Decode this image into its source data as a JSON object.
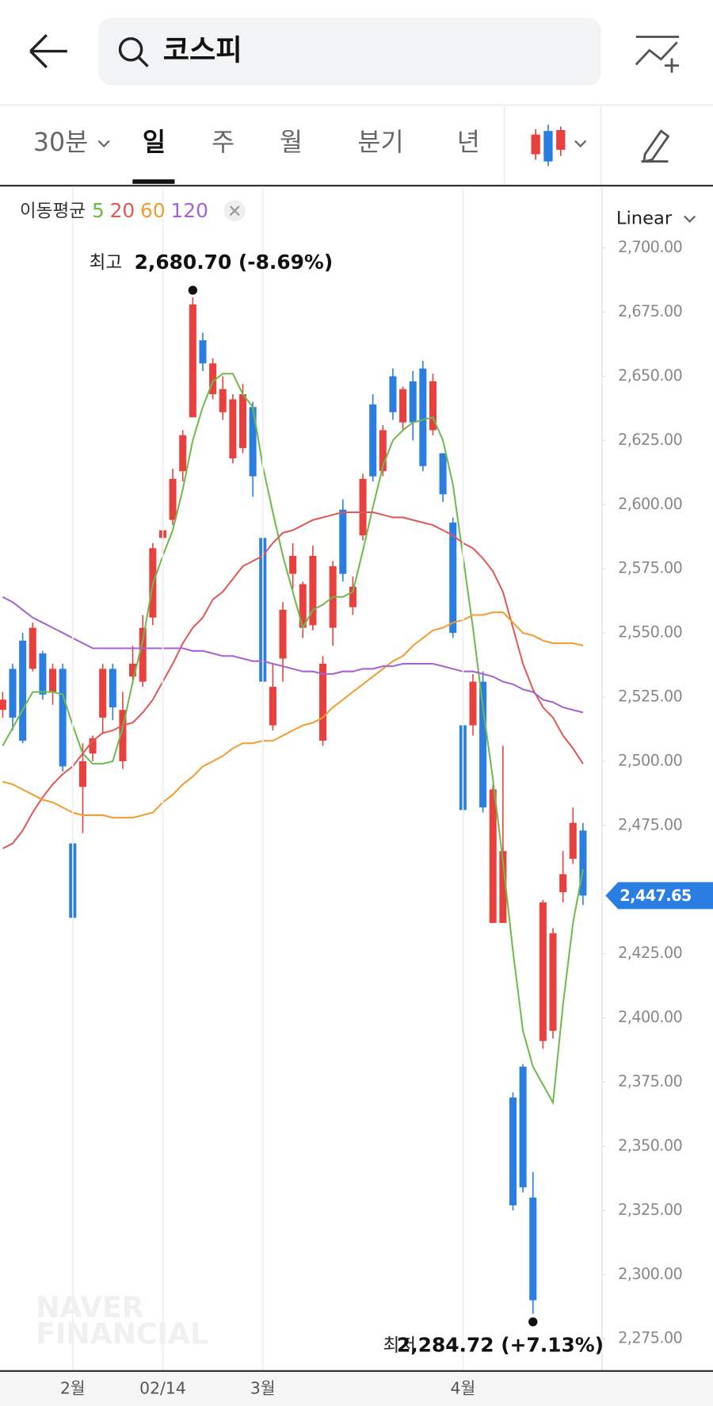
{
  "header": {
    "search_query": "코스피"
  },
  "tabs": [
    "30분",
    "일",
    "주",
    "월",
    "분기",
    "년"
  ],
  "watermark": [
    "NAVER",
    "FINANCIAL"
  ],
  "chart_data": {
    "type": "candlestick",
    "legend_title": "이동평균",
    "scale": "Linear",
    "categories": [
      null,
      null,
      null,
      null,
      null,
      null,
      null,
      "2월",
      null,
      null,
      null,
      null,
      null,
      null,
      null,
      null,
      "02/14",
      null,
      null,
      null,
      null,
      null,
      null,
      null,
      null,
      null,
      "3월",
      null,
      null,
      null,
      null,
      null,
      null,
      null,
      null,
      null,
      null,
      null,
      null,
      null,
      null,
      null,
      null,
      null,
      null,
      null,
      "4월",
      null,
      null,
      null,
      null,
      null,
      null,
      null,
      null,
      null,
      null,
      null,
      null
    ],
    "open": [
      2520,
      2536,
      2547,
      2536,
      2542,
      2527,
      2536,
      2468,
      2490,
      2503,
      2517,
      2536,
      2500,
      2533,
      2531,
      2556,
      2587,
      2594,
      2613,
      2634,
      2664,
      2643,
      2636,
      2618,
      2622,
      2638,
      2587,
      2514,
      2540,
      2573,
      2552,
      2553,
      2508,
      2552,
      2598,
      2560,
      2588,
      2639,
      2613,
      2650,
      2632,
      2648,
      2653,
      2629,
      2620,
      2593,
      2514,
      2514,
      2531,
      2437,
      2437,
      2369,
      2381,
      2330,
      2391,
      2395,
      2449,
      2462,
      2473
    ],
    "high": [
      2527,
      2538,
      2550,
      2554,
      2543,
      2538,
      2538,
      2470,
      2507,
      2510,
      2538,
      2538,
      2527,
      2545,
      2557,
      2585,
      2596,
      2614,
      2629,
      2680.7,
      2667,
      2657,
      2650,
      2643,
      2647,
      2640,
      2589,
      2538,
      2562,
      2585,
      2570,
      2584,
      2541,
      2578,
      2602,
      2572,
      2612,
      2643,
      2631,
      2653,
      2646,
      2652,
      2656,
      2651,
      2620,
      2595,
      2518,
      2534,
      2535,
      2491,
      2506,
      2371,
      2382,
      2340,
      2446,
      2435,
      2465,
      2482,
      2476
    ],
    "low": [
      2517,
      2512,
      2507,
      2535,
      2524,
      2522,
      2496,
      2438,
      2472,
      2500,
      2511,
      2516,
      2497,
      2530,
      2529,
      2553,
      2580,
      2592,
      2609,
      2634,
      2652,
      2641,
      2633,
      2616,
      2620,
      2603,
      2528,
      2512,
      2531,
      2567,
      2548,
      2551,
      2506,
      2545,
      2570,
      2557,
      2586,
      2609,
      2611,
      2633,
      2629,
      2625,
      2613,
      2627,
      2601,
      2548,
      2478,
      2510,
      2480,
      2437,
      2437,
      2325,
      2332,
      2284.72,
      2388,
      2392,
      2445,
      2460,
      2444
    ],
    "close": [
      2524,
      2517,
      2508,
      2552,
      2526,
      2536,
      2498,
      2439,
      2500,
      2509,
      2536,
      2521,
      2520,
      2538,
      2552,
      2583,
      2590,
      2610,
      2627,
      2678,
      2655,
      2655,
      2645,
      2641,
      2643,
      2611,
      2531,
      2529,
      2559,
      2580,
      2569,
      2580,
      2538,
      2576,
      2573,
      2568,
      2610,
      2611,
      2629,
      2636,
      2645,
      2632,
      2615,
      2648,
      2604,
      2550,
      2481,
      2531,
      2482,
      2489,
      2465,
      2327,
      2334,
      2290,
      2445,
      2433,
      2456,
      2476,
      2447.65
    ],
    "up_color": "#e8413d",
    "down_color": "#2a7de1",
    "series": [
      {
        "name": "5",
        "color": "#6dbb4c",
        "values": [
          2506,
          2513,
          2520,
          2527,
          2527,
          2527,
          2526,
          2514,
          2503,
          2499,
          2499,
          2500,
          2513,
          2531,
          2547,
          2569,
          2580,
          2590,
          2606,
          2625,
          2638,
          2648,
          2651,
          2651,
          2643,
          2638,
          2615,
          2597,
          2580,
          2566,
          2552,
          2559,
          2561,
          2564,
          2564,
          2566,
          2582,
          2599,
          2615,
          2625,
          2629,
          2632,
          2633,
          2634,
          2625,
          2608,
          2580,
          2552,
          2521,
          2493,
          2461,
          2426,
          2395,
          2381,
          2374,
          2367,
          2405,
          2437,
          2458
        ]
      },
      {
        "name": "20",
        "color": "#e05a55",
        "values": [
          2466,
          2468,
          2473,
          2480,
          2486,
          2491,
          2495,
          2498,
          2503,
          2508,
          2511,
          2512,
          2514,
          2515,
          2519,
          2524,
          2531,
          2538,
          2546,
          2552,
          2556,
          2563,
          2566,
          2571,
          2576,
          2578,
          2580,
          2585,
          2589,
          2590,
          2592,
          2594,
          2595,
          2596,
          2597,
          2597,
          2597,
          2597,
          2596,
          2595,
          2595,
          2594,
          2593,
          2592,
          2590,
          2588,
          2585,
          2583,
          2579,
          2574,
          2566,
          2552,
          2538,
          2528,
          2521,
          2517,
          2510,
          2505,
          2499
        ]
      },
      {
        "name": "60",
        "color": "#f39c33",
        "values": [
          2492,
          2491,
          2489,
          2487,
          2485,
          2484,
          2482,
          2480,
          2479,
          2479,
          2479,
          2478,
          2478,
          2478,
          2479,
          2480,
          2484,
          2487,
          2491,
          2494,
          2498,
          2500,
          2502,
          2505,
          2507,
          2507,
          2508,
          2508,
          2510,
          2512,
          2514,
          2515,
          2517,
          2521,
          2524,
          2527,
          2530,
          2533,
          2536,
          2539,
          2541,
          2545,
          2548,
          2551,
          2552,
          2554,
          2555,
          2557,
          2557,
          2558,
          2558,
          2554,
          2550,
          2549,
          2547,
          2546,
          2546,
          2546,
          2545
        ]
      },
      {
        "name": "120",
        "color": "#a463d1",
        "values": [
          2564,
          2562,
          2559,
          2556,
          2554,
          2552,
          2550,
          2548,
          2546,
          2544,
          2544,
          2544,
          2544,
          2544,
          2544,
          2544,
          2544,
          2544,
          2544,
          2543,
          2543,
          2542,
          2541,
          2541,
          2540,
          2539,
          2539,
          2538,
          2537,
          2536,
          2535,
          2535,
          2534,
          2534,
          2535,
          2535,
          2536,
          2536,
          2537,
          2537,
          2538,
          2538,
          2538,
          2538,
          2537,
          2536,
          2535,
          2535,
          2534,
          2533,
          2531,
          2530,
          2528,
          2527,
          2524,
          2523,
          2521,
          2520,
          2519
        ]
      }
    ],
    "ylim": [
      2262.8,
      2723.9
    ],
    "yticks": [
      {
        "value": 2275,
        "label": "2,275.00"
      },
      {
        "value": 2300,
        "label": "2,300.00"
      },
      {
        "value": 2325,
        "label": "2,325.00"
      },
      {
        "value": 2350,
        "label": "2,350.00"
      },
      {
        "value": 2375,
        "label": "2,375.00"
      },
      {
        "value": 2400,
        "label": "2,400.00"
      },
      {
        "value": 2425,
        "label": "2,425.00"
      },
      {
        "value": 2450,
        "label": "2,450.00"
      },
      {
        "value": 2475,
        "label": "2,475.00"
      },
      {
        "value": 2500,
        "label": "2,500.00"
      },
      {
        "value": 2525,
        "label": "2,525.00"
      },
      {
        "value": 2550,
        "label": "2,550.00"
      },
      {
        "value": 2575,
        "label": "2,575.00"
      },
      {
        "value": 2600,
        "label": "2,600.00"
      },
      {
        "value": 2625,
        "label": "2,625.00"
      },
      {
        "value": 2650,
        "label": "2,650.00"
      },
      {
        "value": 2675,
        "label": "2,675.00"
      },
      {
        "value": 2700,
        "label": "2,700.00"
      }
    ],
    "last_price_label": "2,447.65",
    "high_marker": {
      "label": "최고",
      "text": "2,680.70 (-8.69%)"
    },
    "low_marker": {
      "label": "최저",
      "text": "2,284.72 (+7.13%)"
    }
  }
}
